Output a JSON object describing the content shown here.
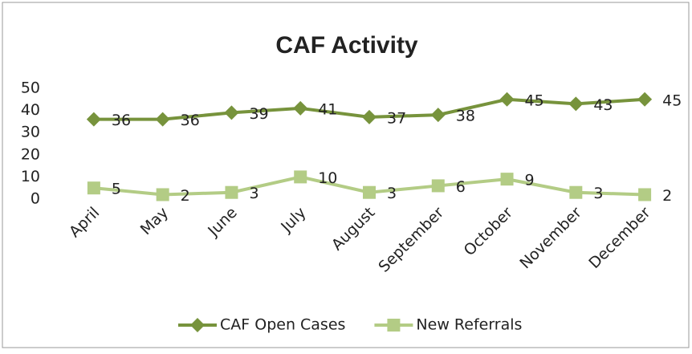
{
  "chart_data": {
    "type": "line",
    "title": "CAF Activity",
    "categories": [
      "April",
      "May",
      "June",
      "July",
      "August",
      "September",
      "October",
      "November",
      "December"
    ],
    "series": [
      {
        "name": "CAF Open Cases",
        "color": "#77933c",
        "marker": "diamond",
        "values": [
          36,
          36,
          39,
          41,
          37,
          38,
          45,
          43,
          45
        ]
      },
      {
        "name": "New Referrals",
        "color": "#b3cc85",
        "marker": "square",
        "values": [
          5,
          2,
          3,
          10,
          3,
          6,
          9,
          3,
          2
        ]
      }
    ],
    "ylim": [
      0,
      50
    ],
    "yticks": [
      0,
      10,
      20,
      30,
      40,
      50
    ],
    "grid": false,
    "legend": "bottom"
  }
}
